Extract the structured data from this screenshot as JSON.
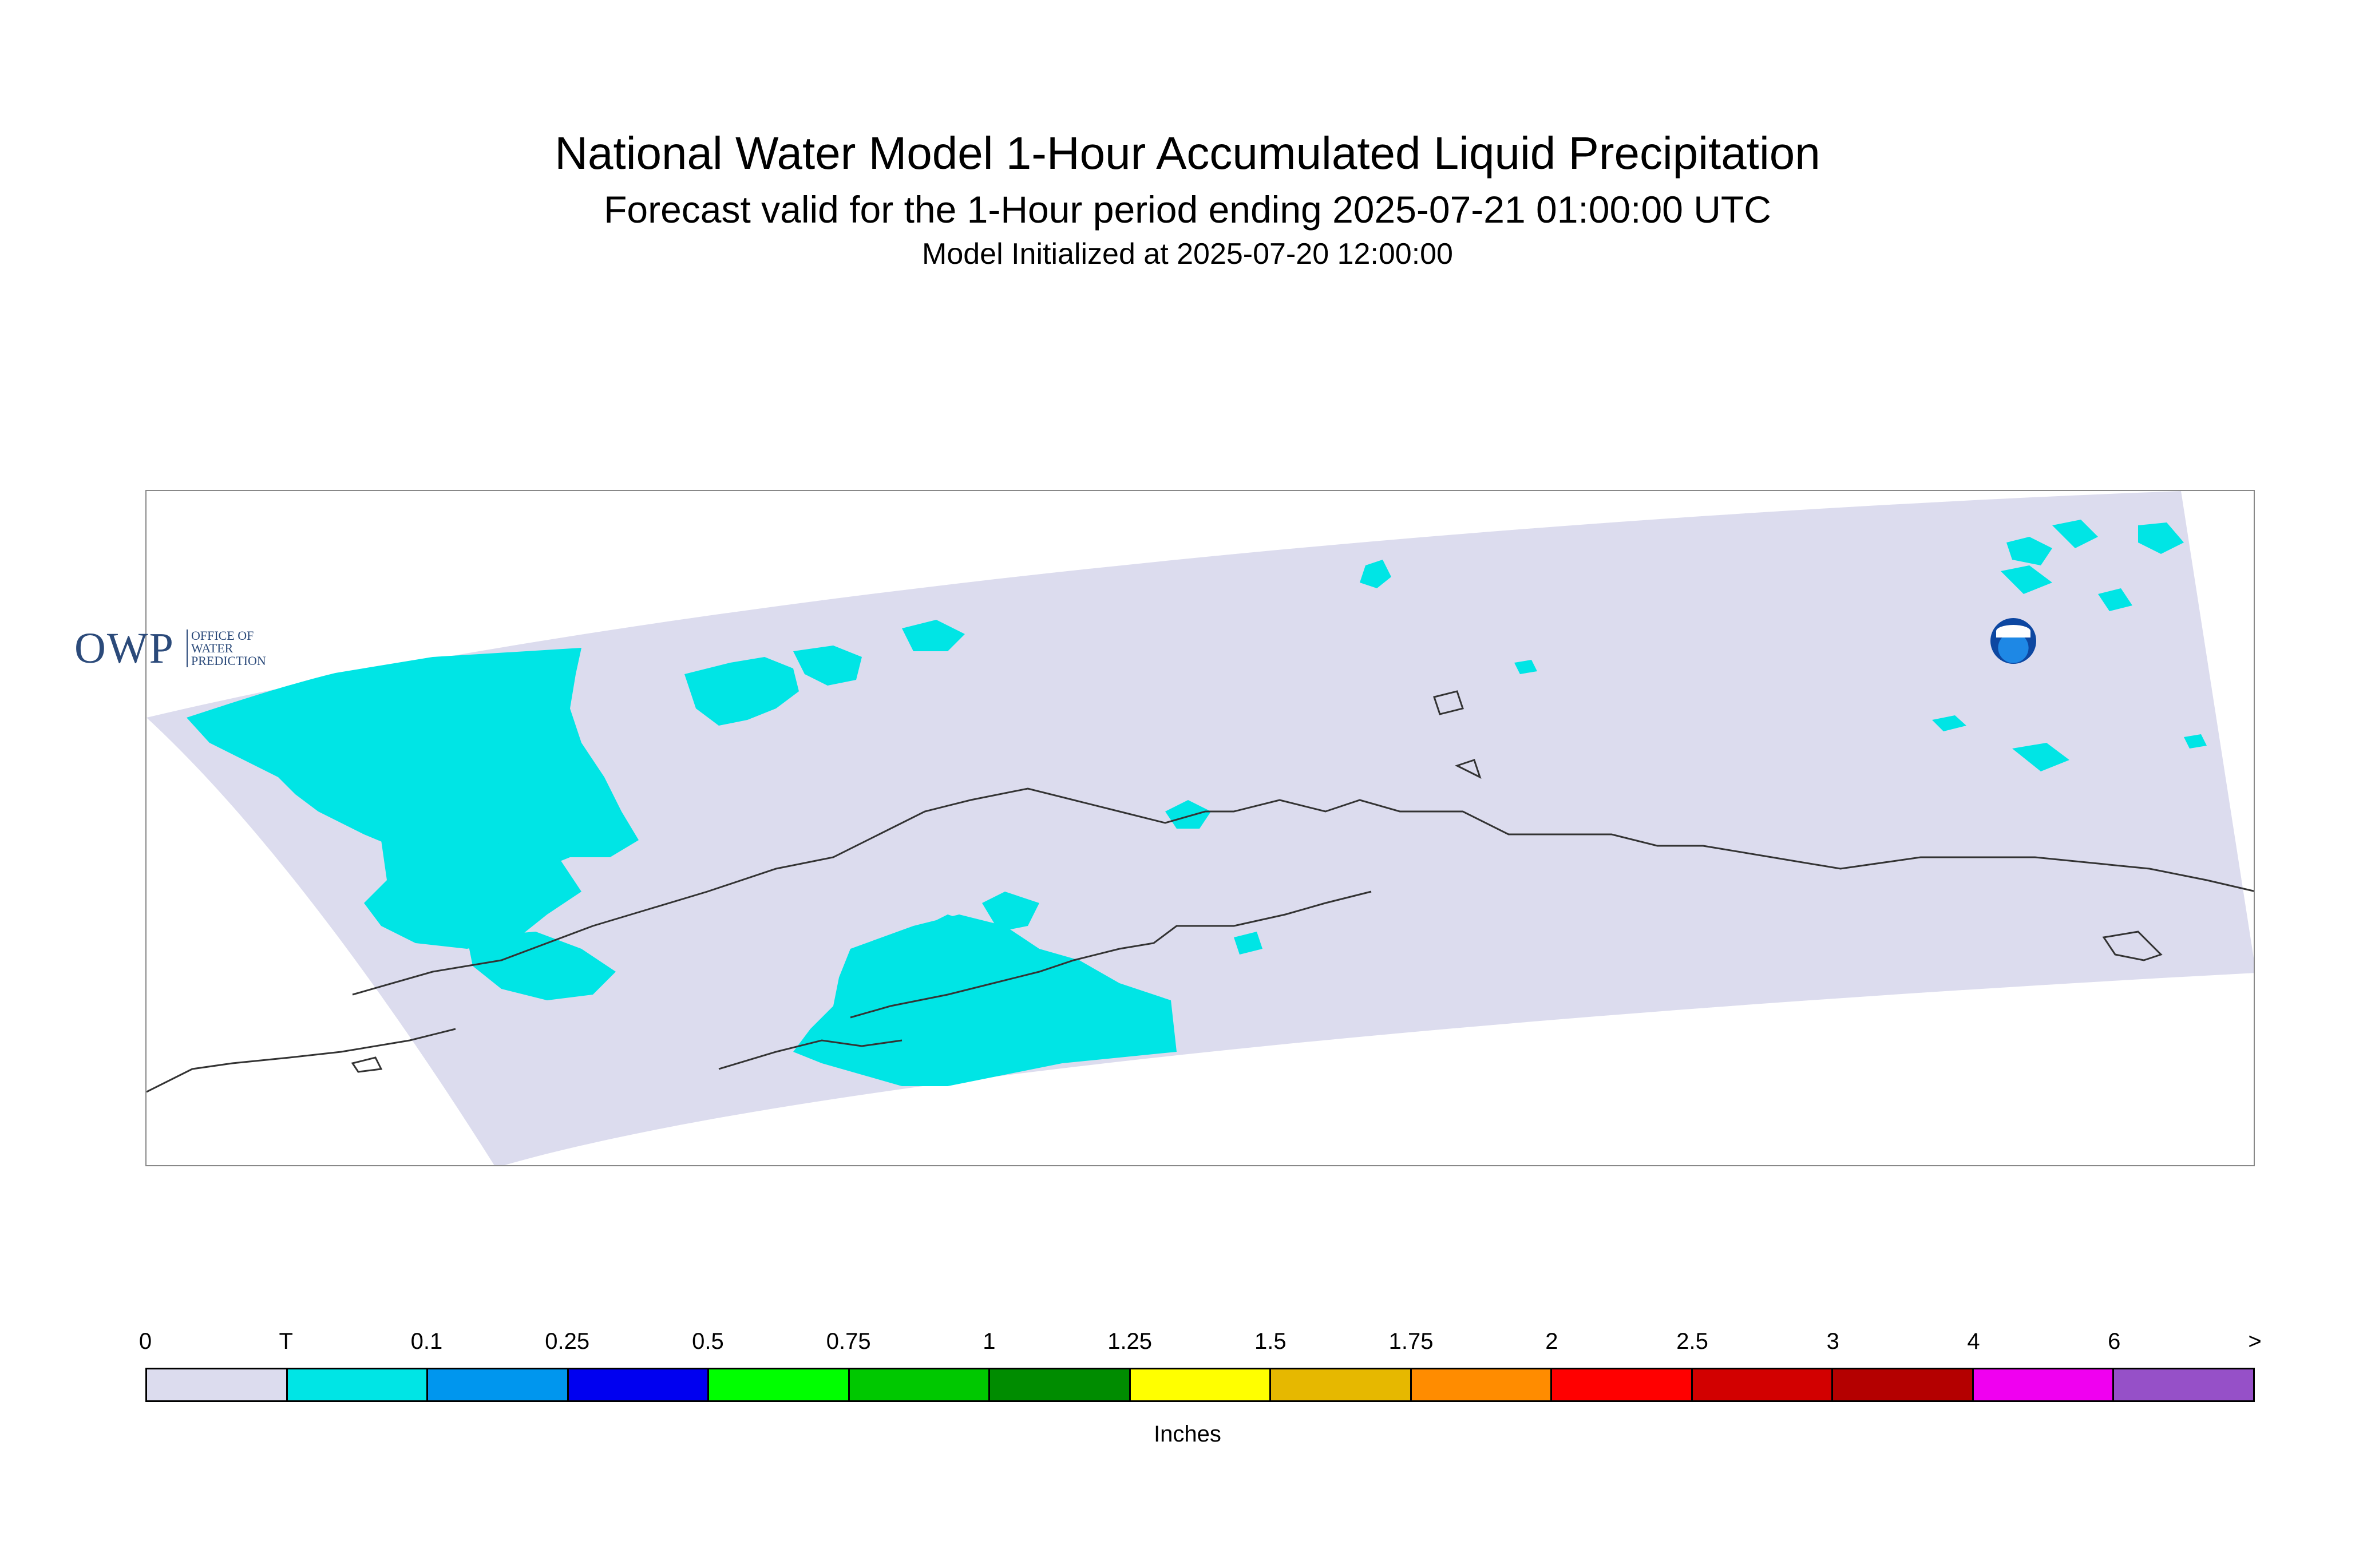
{
  "title": "National Water Model 1-Hour Accumulated Liquid Precipitation",
  "subtitle": "Forecast valid for the 1-Hour period ending 2025-07-21 01:00:00 UTC",
  "init_line": "Model Initialized at 2025-07-20 12:00:00",
  "logos": {
    "owp": "OWP",
    "owp_full": [
      "OFFICE OF",
      "WATER",
      "PREDICTION"
    ],
    "noaa": "NOAA"
  },
  "colors": {
    "domain_fill": "#dcdcee",
    "trace_fill": "#00e5e5",
    "coastline": "#333333"
  },
  "legend": {
    "units": "Inches",
    "labels": [
      "0",
      "T",
      "0.1",
      "0.25",
      "0.5",
      "0.75",
      "1",
      "1.25",
      "1.5",
      "1.75",
      "2",
      "2.5",
      "3",
      "4",
      "6",
      ">"
    ],
    "colors": [
      "#dcdcee",
      "#00e5e5",
      "#0096ee",
      "#0000f0",
      "#00ff00",
      "#00c800",
      "#008c00",
      "#ffff00",
      "#e6b800",
      "#ff8c00",
      "#ff0000",
      "#d20000",
      "#b40000",
      "#f000f0",
      "#9650c8"
    ]
  }
}
